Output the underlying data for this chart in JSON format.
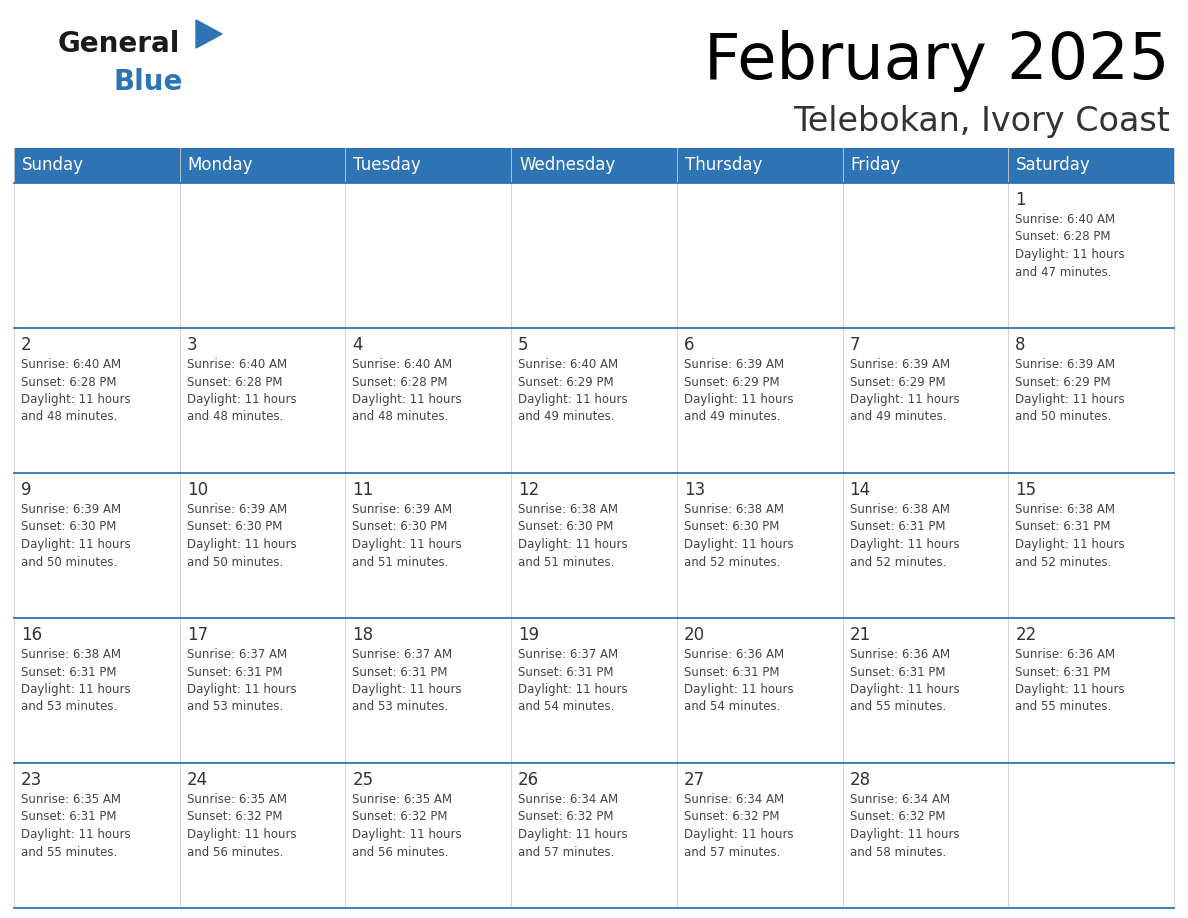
{
  "title": "February 2025",
  "subtitle": "Telebokan, Ivory Coast",
  "header_color": "#2E74B5",
  "header_text_color": "#FFFFFF",
  "days_of_week": [
    "Sunday",
    "Monday",
    "Tuesday",
    "Wednesday",
    "Thursday",
    "Friday",
    "Saturday"
  ],
  "border_color": "#2E74B5",
  "day_number_color": "#333333",
  "text_color": "#444444",
  "calendar": [
    [
      {
        "day": null,
        "info": ""
      },
      {
        "day": null,
        "info": ""
      },
      {
        "day": null,
        "info": ""
      },
      {
        "day": null,
        "info": ""
      },
      {
        "day": null,
        "info": ""
      },
      {
        "day": null,
        "info": ""
      },
      {
        "day": 1,
        "info": "Sunrise: 6:40 AM\nSunset: 6:28 PM\nDaylight: 11 hours\nand 47 minutes."
      }
    ],
    [
      {
        "day": 2,
        "info": "Sunrise: 6:40 AM\nSunset: 6:28 PM\nDaylight: 11 hours\nand 48 minutes."
      },
      {
        "day": 3,
        "info": "Sunrise: 6:40 AM\nSunset: 6:28 PM\nDaylight: 11 hours\nand 48 minutes."
      },
      {
        "day": 4,
        "info": "Sunrise: 6:40 AM\nSunset: 6:28 PM\nDaylight: 11 hours\nand 48 minutes."
      },
      {
        "day": 5,
        "info": "Sunrise: 6:40 AM\nSunset: 6:29 PM\nDaylight: 11 hours\nand 49 minutes."
      },
      {
        "day": 6,
        "info": "Sunrise: 6:39 AM\nSunset: 6:29 PM\nDaylight: 11 hours\nand 49 minutes."
      },
      {
        "day": 7,
        "info": "Sunrise: 6:39 AM\nSunset: 6:29 PM\nDaylight: 11 hours\nand 49 minutes."
      },
      {
        "day": 8,
        "info": "Sunrise: 6:39 AM\nSunset: 6:29 PM\nDaylight: 11 hours\nand 50 minutes."
      }
    ],
    [
      {
        "day": 9,
        "info": "Sunrise: 6:39 AM\nSunset: 6:30 PM\nDaylight: 11 hours\nand 50 minutes."
      },
      {
        "day": 10,
        "info": "Sunrise: 6:39 AM\nSunset: 6:30 PM\nDaylight: 11 hours\nand 50 minutes."
      },
      {
        "day": 11,
        "info": "Sunrise: 6:39 AM\nSunset: 6:30 PM\nDaylight: 11 hours\nand 51 minutes."
      },
      {
        "day": 12,
        "info": "Sunrise: 6:38 AM\nSunset: 6:30 PM\nDaylight: 11 hours\nand 51 minutes."
      },
      {
        "day": 13,
        "info": "Sunrise: 6:38 AM\nSunset: 6:30 PM\nDaylight: 11 hours\nand 52 minutes."
      },
      {
        "day": 14,
        "info": "Sunrise: 6:38 AM\nSunset: 6:31 PM\nDaylight: 11 hours\nand 52 minutes."
      },
      {
        "day": 15,
        "info": "Sunrise: 6:38 AM\nSunset: 6:31 PM\nDaylight: 11 hours\nand 52 minutes."
      }
    ],
    [
      {
        "day": 16,
        "info": "Sunrise: 6:38 AM\nSunset: 6:31 PM\nDaylight: 11 hours\nand 53 minutes."
      },
      {
        "day": 17,
        "info": "Sunrise: 6:37 AM\nSunset: 6:31 PM\nDaylight: 11 hours\nand 53 minutes."
      },
      {
        "day": 18,
        "info": "Sunrise: 6:37 AM\nSunset: 6:31 PM\nDaylight: 11 hours\nand 53 minutes."
      },
      {
        "day": 19,
        "info": "Sunrise: 6:37 AM\nSunset: 6:31 PM\nDaylight: 11 hours\nand 54 minutes."
      },
      {
        "day": 20,
        "info": "Sunrise: 6:36 AM\nSunset: 6:31 PM\nDaylight: 11 hours\nand 54 minutes."
      },
      {
        "day": 21,
        "info": "Sunrise: 6:36 AM\nSunset: 6:31 PM\nDaylight: 11 hours\nand 55 minutes."
      },
      {
        "day": 22,
        "info": "Sunrise: 6:36 AM\nSunset: 6:31 PM\nDaylight: 11 hours\nand 55 minutes."
      }
    ],
    [
      {
        "day": 23,
        "info": "Sunrise: 6:35 AM\nSunset: 6:31 PM\nDaylight: 11 hours\nand 55 minutes."
      },
      {
        "day": 24,
        "info": "Sunrise: 6:35 AM\nSunset: 6:32 PM\nDaylight: 11 hours\nand 56 minutes."
      },
      {
        "day": 25,
        "info": "Sunrise: 6:35 AM\nSunset: 6:32 PM\nDaylight: 11 hours\nand 56 minutes."
      },
      {
        "day": 26,
        "info": "Sunrise: 6:34 AM\nSunset: 6:32 PM\nDaylight: 11 hours\nand 57 minutes."
      },
      {
        "day": 27,
        "info": "Sunrise: 6:34 AM\nSunset: 6:32 PM\nDaylight: 11 hours\nand 57 minutes."
      },
      {
        "day": 28,
        "info": "Sunrise: 6:34 AM\nSunset: 6:32 PM\nDaylight: 11 hours\nand 58 minutes."
      },
      {
        "day": null,
        "info": ""
      }
    ]
  ],
  "logo_color_general": "#1A1A1A",
  "logo_color_blue": "#2E74B5",
  "logo_triangle_color": "#2E74B5"
}
